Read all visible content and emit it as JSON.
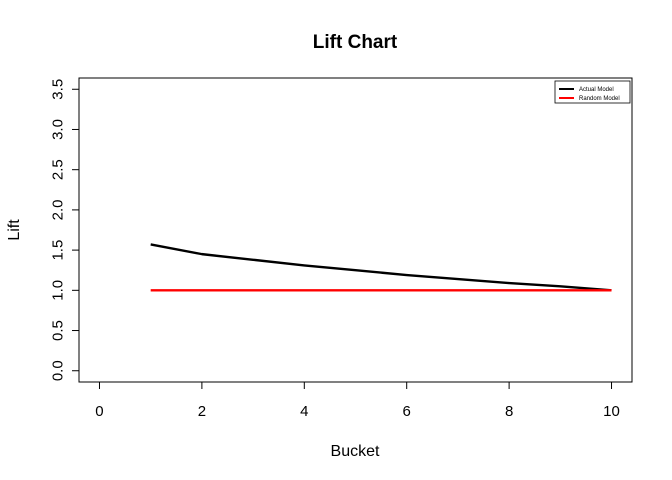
{
  "chart_data": {
    "type": "line",
    "title": "Lift Chart",
    "xlabel": "Bucket",
    "ylabel": "Lift",
    "xlim": [
      -0.4,
      10.4
    ],
    "ylim": [
      -0.14,
      3.64
    ],
    "x_ticks": [
      0,
      2,
      4,
      6,
      8,
      10
    ],
    "y_ticks": [
      0.0,
      0.5,
      1.0,
      1.5,
      2.0,
      2.5,
      3.0,
      3.5
    ],
    "x_tick_labels": [
      "0",
      "2",
      "4",
      "6",
      "8",
      "10"
    ],
    "y_tick_labels": [
      "0.0",
      "0.5",
      "1.0",
      "1.5",
      "2.0",
      "2.5",
      "3.0",
      "3.5"
    ],
    "grid": false,
    "legend_position": "top-right",
    "series": [
      {
        "name": "Actual Model",
        "color": "#000000",
        "x": [
          1,
          2,
          3,
          4,
          5,
          6,
          7,
          8,
          9,
          10
        ],
        "values": [
          1.57,
          1.45,
          1.38,
          1.31,
          1.25,
          1.19,
          1.14,
          1.09,
          1.05,
          1.0
        ]
      },
      {
        "name": "Random Model",
        "color": "#ff0000",
        "x": [
          1,
          2,
          3,
          4,
          5,
          6,
          7,
          8,
          9,
          10
        ],
        "values": [
          1.0,
          1.0,
          1.0,
          1.0,
          1.0,
          1.0,
          1.0,
          1.0,
          1.0,
          1.0
        ]
      }
    ]
  }
}
